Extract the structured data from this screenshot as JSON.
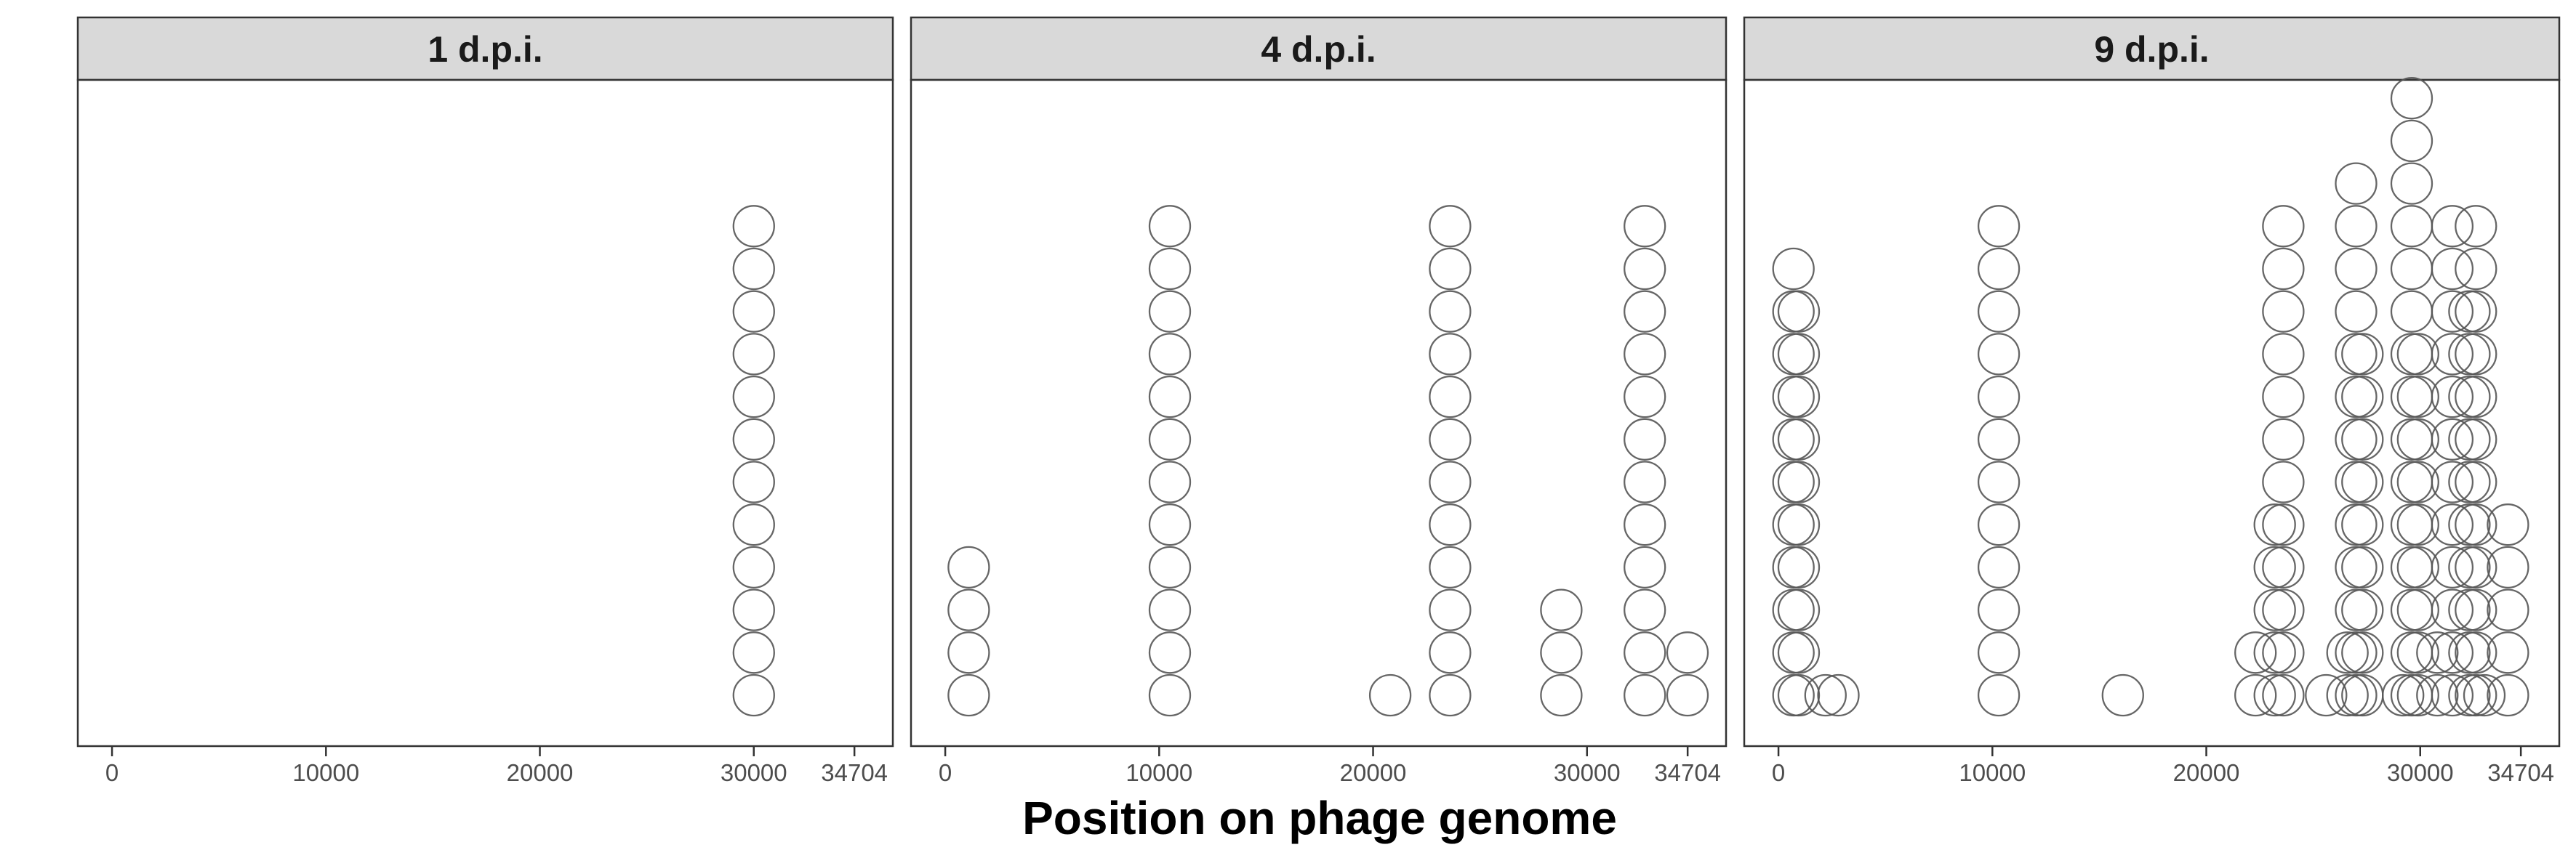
{
  "chart_data": {
    "type": "scatter",
    "subtype": "dot-plot (stacked circles)",
    "xlabel": "Position on phage genome",
    "ylabel": "",
    "xlim": [
      -1600,
      36500
    ],
    "x_ticks": [
      0,
      10000,
      20000,
      30000,
      34704
    ],
    "x_tick_labels": [
      "0",
      "10000",
      "20000",
      "30000",
      "34704"
    ],
    "y_axis_shown": false,
    "grid": false,
    "marker": {
      "shape": "open circle",
      "stroke": "#555555",
      "fill": "none"
    },
    "facets": [
      {
        "label": "1 d.p.i.",
        "stacks": [
          {
            "x": 30000,
            "count": 12
          }
        ]
      },
      {
        "label": "4 d.p.i.",
        "stacks": [
          {
            "x": 1100,
            "count": 4
          },
          {
            "x": 10500,
            "count": 12
          },
          {
            "x": 20800,
            "count": 1
          },
          {
            "x": 23600,
            "count": 12
          },
          {
            "x": 28800,
            "count": 3
          },
          {
            "x": 32700,
            "count": 12
          },
          {
            "x": 34700,
            "count": 2
          }
        ]
      },
      {
        "label": "9 d.p.i.",
        "stacks": [
          {
            "x": 700,
            "count": 11
          },
          {
            "x": 950,
            "count": 10
          },
          {
            "x": 2200,
            "count": 1
          },
          {
            "x": 2800,
            "count": 1
          },
          {
            "x": 10300,
            "count": 12
          },
          {
            "x": 16100,
            "count": 1
          },
          {
            "x": 22300,
            "count": 2
          },
          {
            "x": 23200,
            "count": 5
          },
          {
            "x": 23600,
            "count": 12
          },
          {
            "x": 25600,
            "count": 1
          },
          {
            "x": 26600,
            "count": 2
          },
          {
            "x": 27000,
            "count": 13
          },
          {
            "x": 27300,
            "count": 9
          },
          {
            "x": 29200,
            "count": 1
          },
          {
            "x": 29600,
            "count": 15
          },
          {
            "x": 29900,
            "count": 9
          },
          {
            "x": 30800,
            "count": 2
          },
          {
            "x": 31500,
            "count": 12
          },
          {
            "x": 32300,
            "count": 10
          },
          {
            "x": 32600,
            "count": 12
          },
          {
            "x": 33000,
            "count": 1
          },
          {
            "x": 34100,
            "count": 5
          }
        ]
      }
    ]
  }
}
